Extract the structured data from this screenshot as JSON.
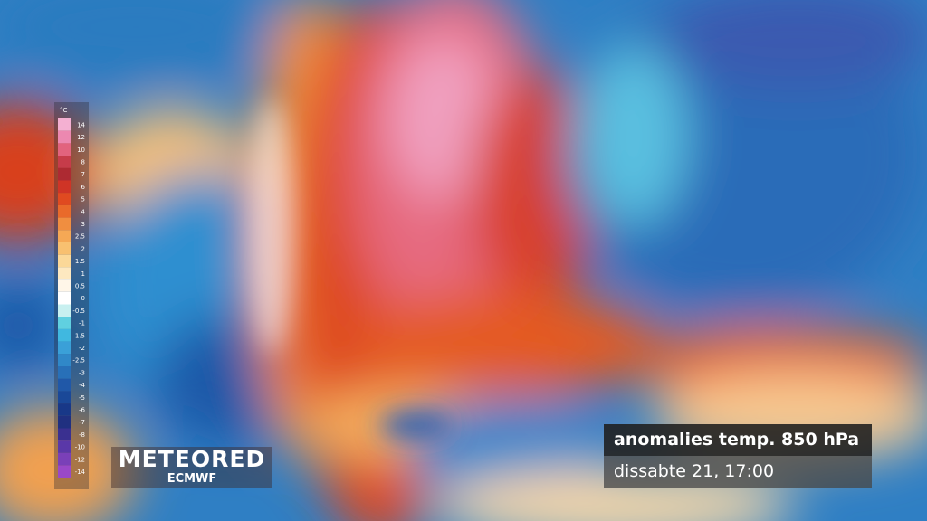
{
  "legend": {
    "unit": "°C",
    "items": [
      {
        "label": "14",
        "color": "#f4b0d2"
      },
      {
        "label": "12",
        "color": "#ec88b0"
      },
      {
        "label": "10",
        "color": "#e2637e"
      },
      {
        "label": "8",
        "color": "#c63c4a"
      },
      {
        "label": "7",
        "color": "#ad2a32"
      },
      {
        "label": "6",
        "color": "#cf3426"
      },
      {
        "label": "5",
        "color": "#e04a20"
      },
      {
        "label": "4",
        "color": "#e96a2a"
      },
      {
        "label": "3",
        "color": "#f08e40"
      },
      {
        "label": "2.5",
        "color": "#f5a855"
      },
      {
        "label": "2",
        "color": "#f8c070"
      },
      {
        "label": "1.5",
        "color": "#fbd898"
      },
      {
        "label": "1",
        "color": "#fde8c0"
      },
      {
        "label": "0.5",
        "color": "#fff6e8"
      },
      {
        "label": "0",
        "color": "#ffffff"
      },
      {
        "label": "-0.5",
        "color": "#c8f0f0"
      },
      {
        "label": "-1",
        "color": "#60d0e0"
      },
      {
        "label": "-1.5",
        "color": "#40b8e0"
      },
      {
        "label": "-2",
        "color": "#3aa0d8"
      },
      {
        "label": "-2.5",
        "color": "#3088c8"
      },
      {
        "label": "-3",
        "color": "#2870b8"
      },
      {
        "label": "-4",
        "color": "#2058a8"
      },
      {
        "label": "-5",
        "color": "#1a4898"
      },
      {
        "label": "-6",
        "color": "#183888"
      },
      {
        "label": "-7",
        "color": "#203080"
      },
      {
        "label": "-8",
        "color": "#3a3090"
      },
      {
        "label": "-10",
        "color": "#5a38a8"
      },
      {
        "label": "-12",
        "color": "#7a40b8"
      },
      {
        "label": "-14",
        "color": "#9a48c8"
      }
    ]
  },
  "logo": {
    "brand": "METEORED",
    "source": "ECMWF"
  },
  "info": {
    "title": "anomalies temp. 850 hPa",
    "time": "dissabte 21, 17:00"
  }
}
